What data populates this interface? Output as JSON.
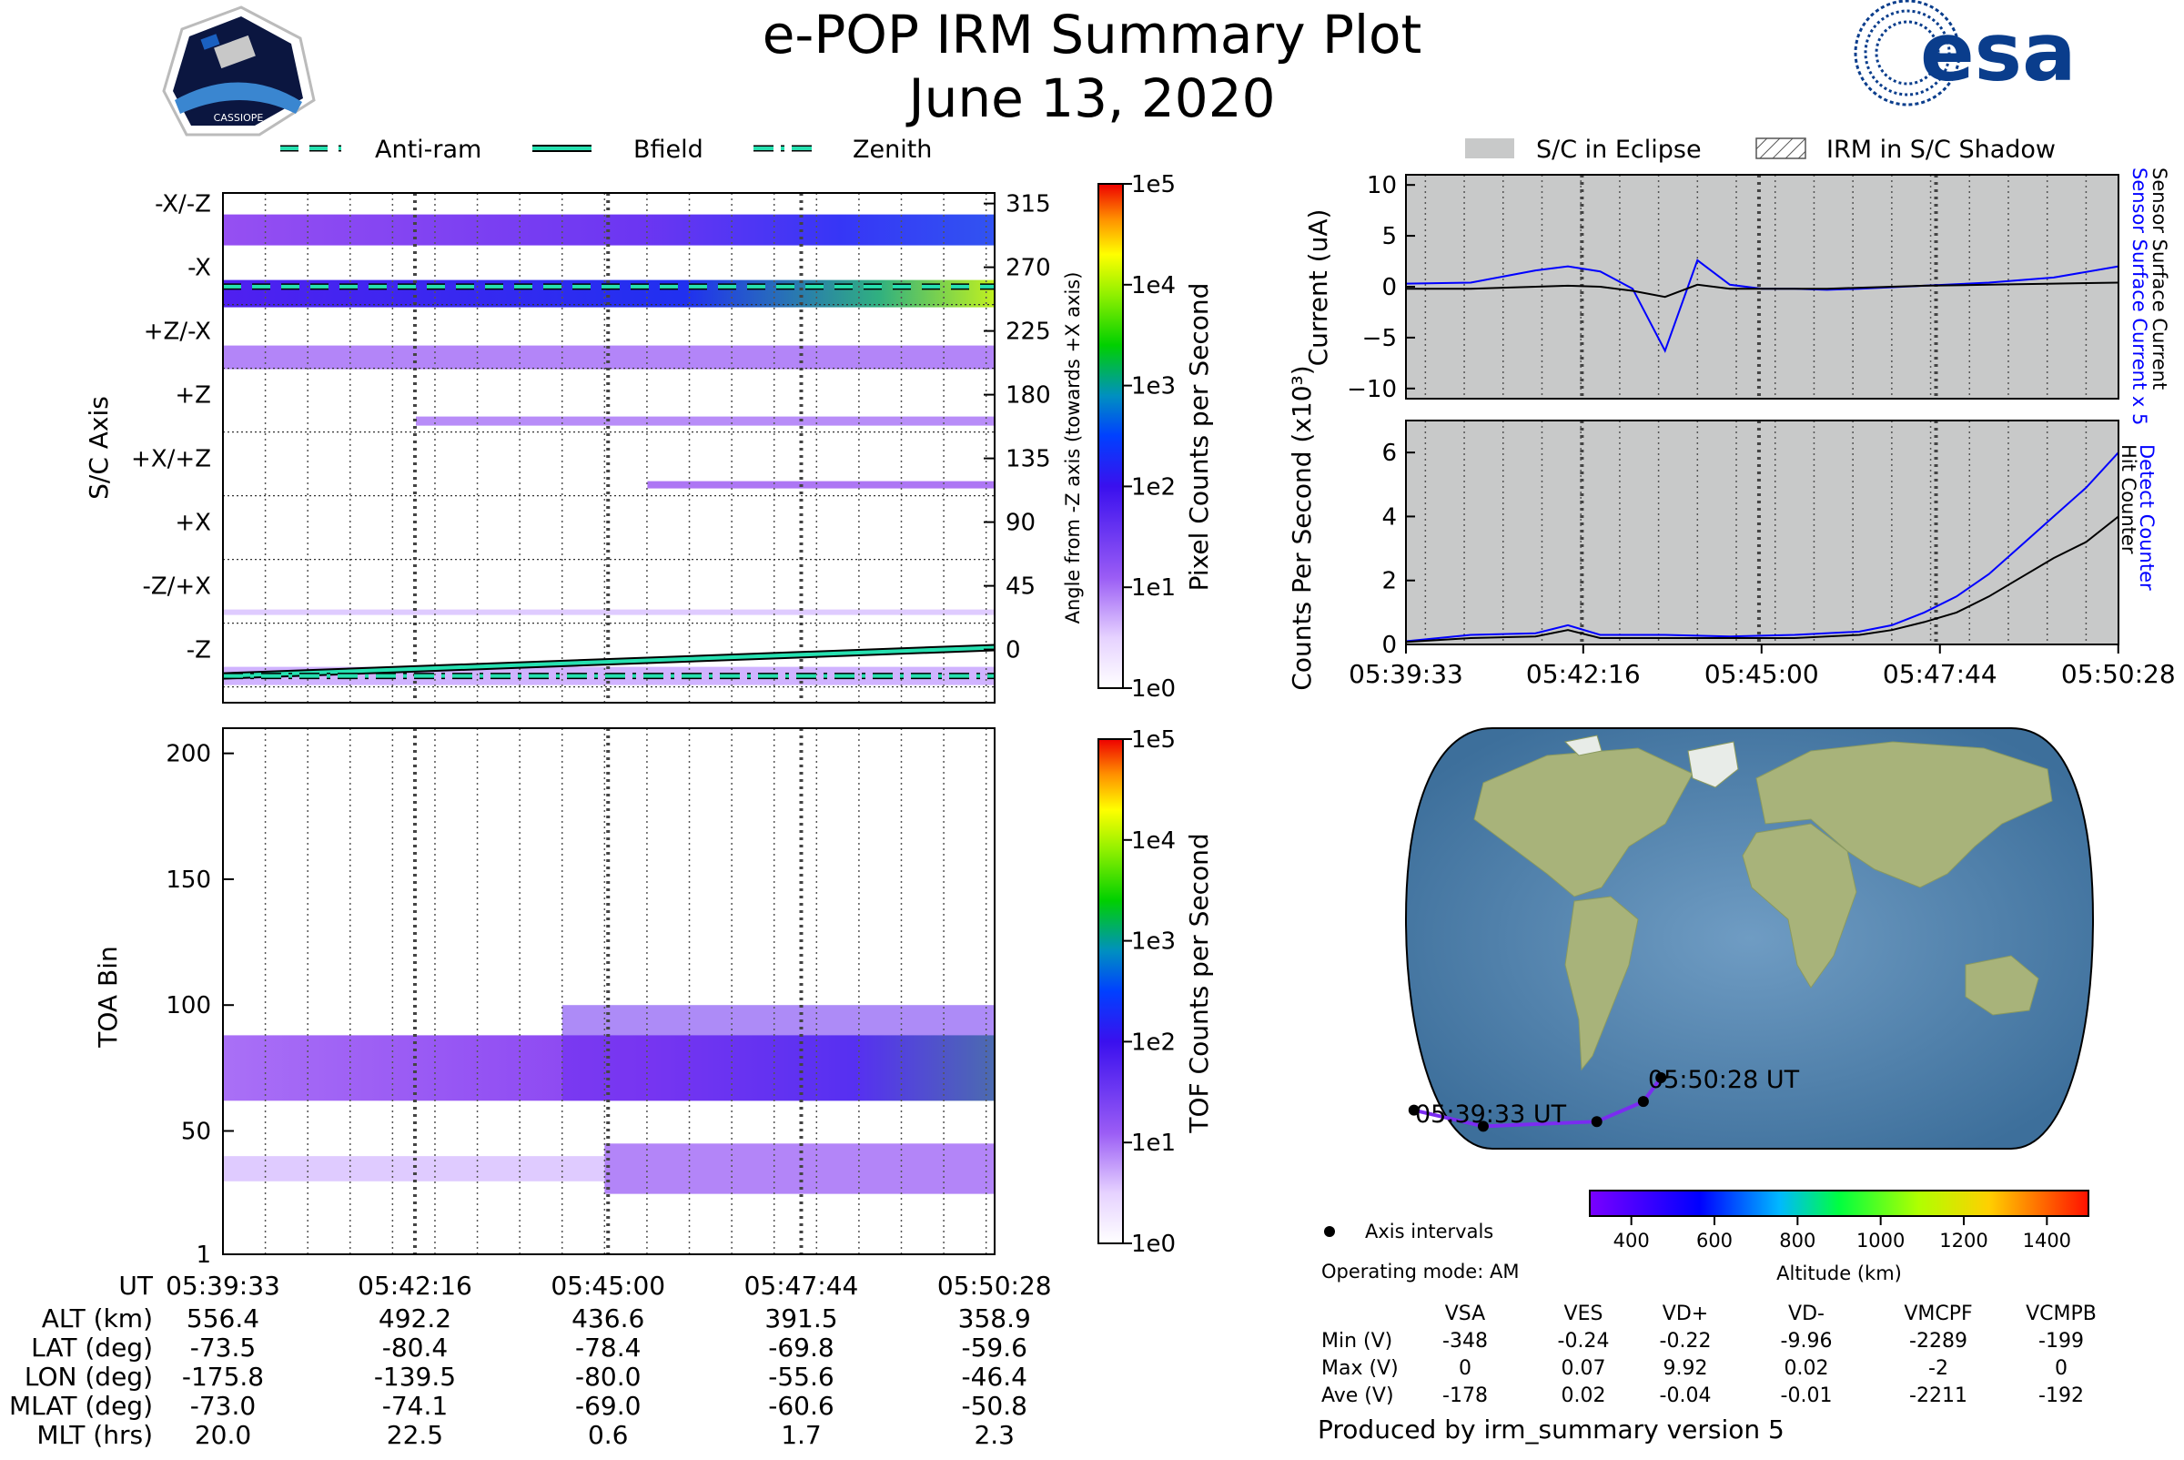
{
  "title": "e-POP IRM Summary Plot",
  "date": "June 13, 2020",
  "logos": {
    "left": "CASSIOPE",
    "right": "esa"
  },
  "colors": {
    "accent_cyan": "#26e0b0",
    "blue_series": "#0000ff",
    "eclipse_gray": "#c8c9c9",
    "track_purple": "#7a2cf0"
  },
  "left_legend": [
    {
      "label": "Anti-ram",
      "style": "dashed"
    },
    {
      "label": "Bfield",
      "style": "solid"
    },
    {
      "label": "Zenith",
      "style": "dashdot"
    }
  ],
  "right_legend": [
    {
      "label": "S/C in Eclipse",
      "style": "gray-fill"
    },
    {
      "label": "IRM in S/C Shadow",
      "style": "hatch"
    }
  ],
  "time_ticks": [
    "05:39:33",
    "05:42:16",
    "05:45:00",
    "05:47:44",
    "05:50:28"
  ],
  "chart_data": [
    {
      "type": "heatmap",
      "name": "pixel-counts",
      "ylabel": "S/C Axis",
      "y2label": "Angle from -Z axis (towards +X axis)",
      "axis_labels": [
        "-X/-Z",
        "-X",
        "+Z/-X",
        "+Z",
        "+X/+Z",
        "+X",
        "-Z/+X",
        "-Z"
      ],
      "angle_ticks": [
        "315",
        "270",
        "225",
        "180",
        "135",
        "90",
        "45",
        "0"
      ],
      "colorbar_label": "Pixel Counts per Second",
      "colorbar_ticks": [
        "1e5",
        "1e4",
        "1e3",
        "1e2",
        "1e1",
        "1e0"
      ],
      "series": [
        {
          "name": "Anti-ram",
          "angle_start": 275,
          "angle_end": 275
        },
        {
          "name": "Bfield",
          "angle_start": 0,
          "angle_end": 20
        },
        {
          "name": "Zenith",
          "angle_start": 0,
          "angle_end": 0
        }
      ]
    },
    {
      "type": "heatmap",
      "name": "tof-counts",
      "ylabel": "TOA Bin",
      "ylim": [
        1,
        210
      ],
      "yticks": [
        "200",
        "150",
        "100",
        "50",
        "1"
      ],
      "colorbar_label": "TOF Counts per Second",
      "colorbar_ticks": [
        "1e5",
        "1e4",
        "1e3",
        "1e2",
        "1e1",
        "1e0"
      ]
    },
    {
      "type": "line",
      "name": "current",
      "ylabel": "Current (uA)",
      "y2label_blue": "Sensor Surface Current x 5",
      "y2label_black": "Sensor Surface Current",
      "ylim": [
        -11,
        11
      ],
      "yticks": [
        "10",
        "5",
        "0",
        "−5",
        "−10"
      ],
      "x_minutes": [
        0,
        1,
        2,
        2.5,
        3,
        3.5,
        4,
        4.5,
        5,
        5.5,
        6,
        6.5,
        7,
        8,
        9,
        10,
        11
      ],
      "series": [
        {
          "name": "Sensor Surface Current x 5",
          "color": "#0000ff",
          "values": [
            0.3,
            0.4,
            1.6,
            2.0,
            1.5,
            -0.2,
            -6.3,
            2.6,
            0.2,
            -0.2,
            -0.2,
            -0.3,
            -0.2,
            0.1,
            0.4,
            0.9,
            2.0
          ]
        },
        {
          "name": "Sensor Surface Current",
          "color": "#000000",
          "values": [
            -0.2,
            -0.2,
            0.0,
            0.1,
            0.0,
            -0.4,
            -1.0,
            0.2,
            -0.2,
            -0.2,
            -0.2,
            -0.2,
            -0.1,
            0.1,
            0.2,
            0.3,
            0.4
          ]
        }
      ]
    },
    {
      "type": "line",
      "name": "counts",
      "ylabel": "Counts Per Second (x10³)",
      "y2label_blue": "Detect Counter",
      "y2label_black": "Hit Counter",
      "ylim": [
        0,
        7
      ],
      "yticks": [
        "6",
        "4",
        "2",
        "0"
      ],
      "x_minutes": [
        0,
        1,
        2,
        2.5,
        3,
        4,
        5,
        6,
        7,
        7.5,
        8,
        8.5,
        9,
        9.5,
        10,
        10.5,
        11
      ],
      "series": [
        {
          "name": "Detect Counter",
          "color": "#0000ff",
          "values": [
            0.1,
            0.3,
            0.35,
            0.6,
            0.3,
            0.3,
            0.25,
            0.3,
            0.4,
            0.6,
            1.0,
            1.5,
            2.2,
            3.1,
            4.0,
            4.9,
            6.0
          ]
        },
        {
          "name": "Hit Counter",
          "color": "#000000",
          "values": [
            0.08,
            0.2,
            0.25,
            0.45,
            0.2,
            0.2,
            0.2,
            0.2,
            0.3,
            0.45,
            0.7,
            1.0,
            1.5,
            2.1,
            2.7,
            3.2,
            4.0
          ]
        }
      ]
    },
    {
      "type": "scatter",
      "name": "ground-track",
      "start_label": "05:39:33 UT",
      "end_label": "05:50:28 UT",
      "legend_label": "Axis intervals",
      "colorbar_label": "Altitude (km)",
      "colorbar_ticks": [
        "400",
        "600",
        "800",
        "1000",
        "1200",
        "1400"
      ],
      "points": [
        {
          "lon": -175.8,
          "lat": -73.5
        },
        {
          "lon": -139.5,
          "lat": -80.4
        },
        {
          "lon": -80.0,
          "lat": -78.4
        },
        {
          "lon": -55.6,
          "lat": -69.8
        },
        {
          "lon": -46.4,
          "lat": -59.6
        }
      ]
    }
  ],
  "ephemeris": {
    "header": "UT",
    "times": [
      "05:39:33",
      "05:42:16",
      "05:45:00",
      "05:47:44",
      "05:50:28"
    ],
    "rows": [
      {
        "label": "ALT (km)",
        "values": [
          "556.4",
          "492.2",
          "436.6",
          "391.5",
          "358.9"
        ]
      },
      {
        "label": "LAT (deg)",
        "values": [
          "-73.5",
          "-80.4",
          "-78.4",
          "-69.8",
          "-59.6"
        ]
      },
      {
        "label": "LON (deg)",
        "values": [
          "-175.8",
          "-139.5",
          "-80.0",
          "-55.6",
          "-46.4"
        ]
      },
      {
        "label": "MLAT (deg)",
        "values": [
          "-73.0",
          "-74.1",
          "-69.0",
          "-60.6",
          "-50.8"
        ]
      },
      {
        "label": "MLT (hrs)",
        "values": [
          "20.0",
          "22.5",
          "0.6",
          "1.7",
          "2.3"
        ]
      }
    ]
  },
  "operating_mode": "Operating mode: AM",
  "voltage_table": {
    "columns": [
      "VSA",
      "VES",
      "VD+",
      "VD-",
      "VMCPF",
      "VCMPB"
    ],
    "rows": [
      {
        "label": "Min (V)",
        "values": [
          "-348",
          "-0.24",
          "-0.22",
          "-9.96",
          "-2289",
          "-199"
        ]
      },
      {
        "label": "Max (V)",
        "values": [
          "0",
          "0.07",
          "9.92",
          "0.02",
          "-2",
          "0"
        ]
      },
      {
        "label": "Ave (V)",
        "values": [
          "-178",
          "0.02",
          "-0.04",
          "-0.01",
          "-2211",
          "-192"
        ]
      }
    ]
  },
  "footer": "Produced by irm_summary version 5"
}
